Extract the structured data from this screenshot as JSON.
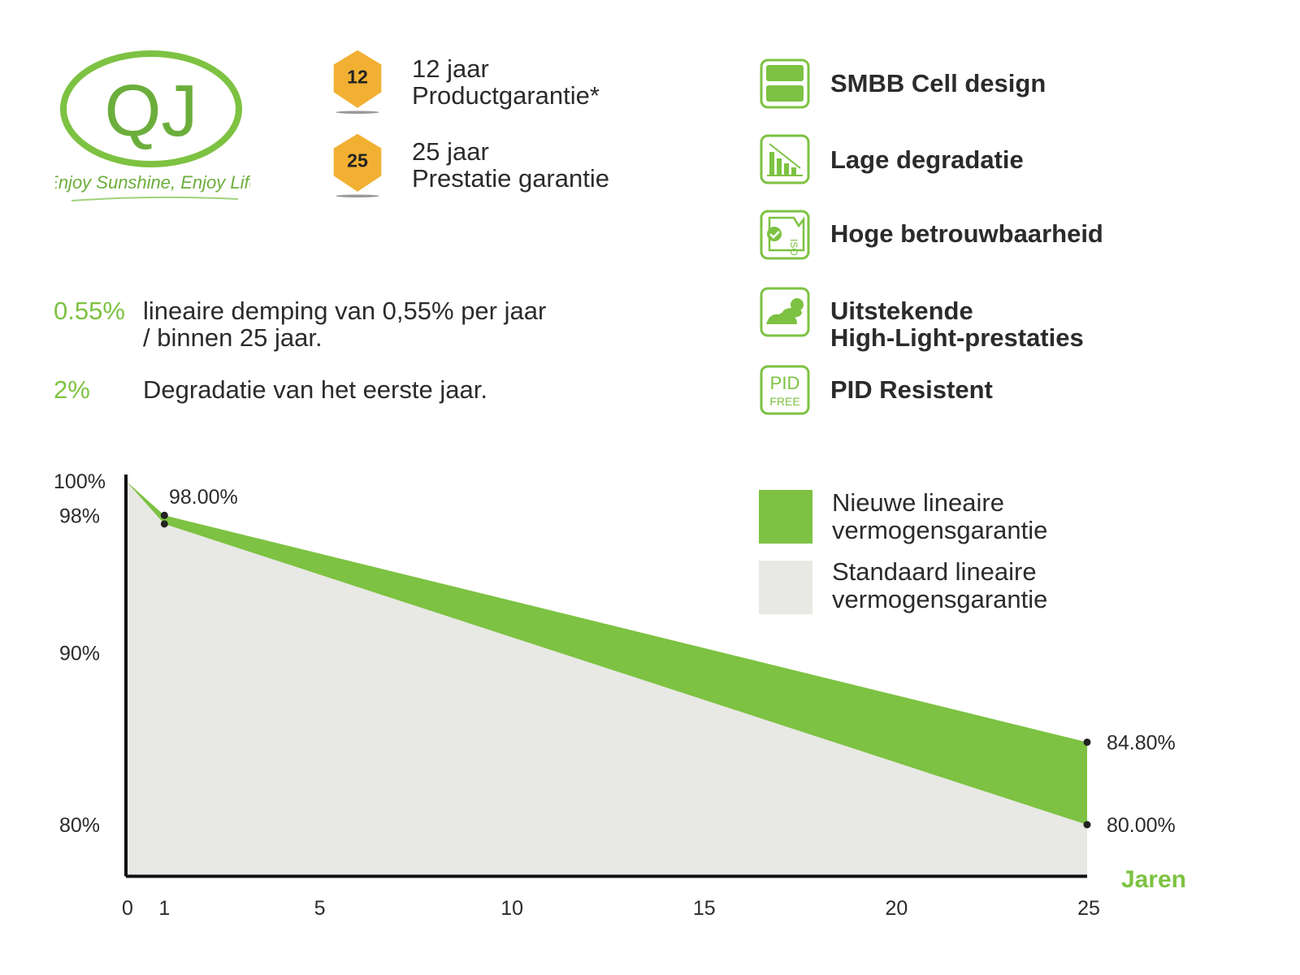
{
  "logo": {
    "text": "QJ",
    "tagline": "Enjoy Sunshine, Enjoy Life"
  },
  "warranties": [
    {
      "badge": "12",
      "line1": "12 jaar",
      "line2": "Productgarantie*"
    },
    {
      "badge": "25",
      "line1": "25 jaar",
      "line2": "Prestatie garantie"
    }
  ],
  "features": [
    {
      "icon": "cell-design-icon",
      "label": "SMBB Cell design"
    },
    {
      "icon": "degradation-chart-icon",
      "label": "Lage degradatie"
    },
    {
      "icon": "iso-certificate-icon",
      "label": "Hoge betrouwbaarheid"
    },
    {
      "icon": "cloud-sun-icon",
      "label": "Uitstekende\nHigh-Light-prestaties",
      "line1": "Uitstekende",
      "line2": "High-Light-prestaties"
    },
    {
      "icon": "pid-free-icon",
      "label": "PID Resistent",
      "icon_text1": "PID",
      "icon_text2": "FREE"
    }
  ],
  "stats": [
    {
      "value": "0.55%",
      "line1": "lineaire demping van 0,55% per jaar",
      "line2": "/ binnen 25 jaar."
    },
    {
      "value": "2%",
      "line1": "Degradatie van het eerste jaar."
    }
  ],
  "colors": {
    "green": "#7dc242",
    "grey": "#e8e8e4",
    "badge": "#f2b033",
    "text": "#2b2b2b"
  },
  "chart_data": {
    "type": "area",
    "xlabel": "Jaren",
    "ylabel": "",
    "xlim": [
      0,
      25
    ],
    "ylim": [
      77,
      100
    ],
    "x_ticks": [
      "0",
      "1",
      "5",
      "10",
      "15",
      "20",
      "25"
    ],
    "y_ticks": [
      "100%",
      "98%",
      "90%",
      "80%"
    ],
    "grid": false,
    "legend_position": "right",
    "series": [
      {
        "name": "Nieuwe lineaire vermogensgarantie",
        "name_line1": "Nieuwe lineaire",
        "name_line2": "vermogensgarantie",
        "color": "#7dc242",
        "x": [
          0,
          1,
          25
        ],
        "y": [
          100,
          98.0,
          84.8
        ]
      },
      {
        "name": "Standaard lineaire vermogensgarantie",
        "name_line1": "Standaard lineaire",
        "name_line2": "vermogensgarantie",
        "color": "#e8e8e4",
        "x": [
          0,
          1,
          25
        ],
        "y": [
          100,
          97.5,
          80.0
        ]
      }
    ],
    "annotations": [
      "98.00%",
      "84.80%",
      "80.00%"
    ]
  }
}
